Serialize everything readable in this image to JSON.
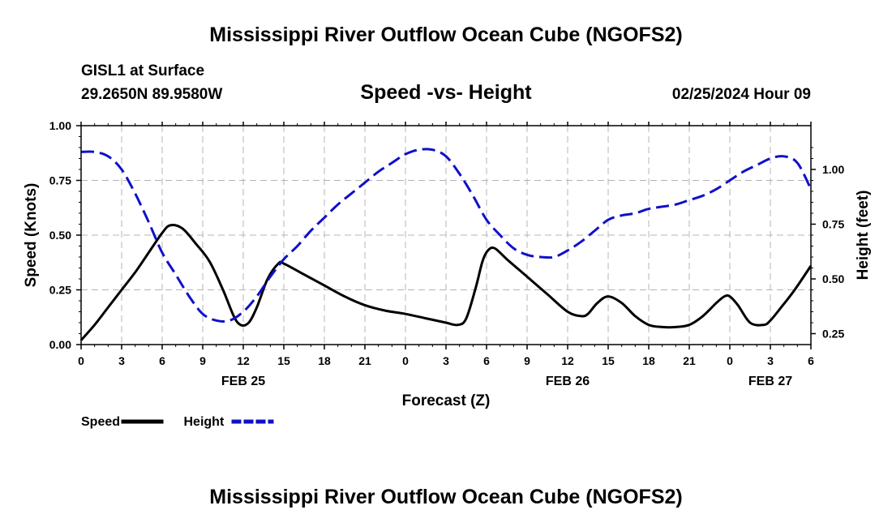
{
  "header": {
    "title": "Mississippi River Outflow Ocean Cube (NGOFS2)",
    "station": "GISL1 at Surface",
    "coords": "29.2650N  89.9580W",
    "chart_title": "Speed -vs- Height",
    "date": "02/25/2024 Hour 09"
  },
  "footer": {
    "title": "Mississippi River Outflow Ocean Cube (NGOFS2)"
  },
  "chart_data": {
    "type": "line",
    "title": "Speed -vs- Height",
    "xlabel": "Forecast (Z)",
    "ylabel": "Speed (Knots)",
    "y2label": "Height (feet)",
    "xlim": [
      0,
      54
    ],
    "ylim": [
      0,
      1.0
    ],
    "y2lim": [
      0.2,
      1.2
    ],
    "grid": true,
    "x_ticks": [
      0,
      3,
      6,
      9,
      12,
      15,
      18,
      21,
      24,
      27,
      30,
      33,
      36,
      39,
      42,
      45,
      48,
      51,
      54
    ],
    "x_tick_labels": [
      "0",
      "3",
      "6",
      "9",
      "12",
      "15",
      "18",
      "21",
      "0",
      "3",
      "6",
      "9",
      "12",
      "15",
      "18",
      "21",
      "0",
      "3",
      "6"
    ],
    "y_ticks": [
      0,
      0.25,
      0.5,
      0.75,
      1.0
    ],
    "y_tick_labels": [
      "0.00",
      "0.25",
      "0.50",
      "0.75",
      "1.00"
    ],
    "y2_ticks": [
      0.25,
      0.5,
      0.75,
      1.0
    ],
    "y2_tick_labels": [
      "0.25",
      "0.50",
      "0.75",
      "1.00"
    ],
    "date_labels": [
      {
        "x": 12,
        "label": "FEB 25"
      },
      {
        "x": 36,
        "label": "FEB 26"
      },
      {
        "x": 51,
        "label": "FEB 27"
      }
    ],
    "series": [
      {
        "name": "Speed",
        "axis": "left",
        "color": "#000000",
        "dash": "solid",
        "x": [
          0,
          1,
          2,
          3,
          4,
          5,
          6,
          6.6,
          7.5,
          8.5,
          9.5,
          10.5,
          11.3,
          11.8,
          12.4,
          13,
          13.8,
          14.6,
          15,
          16.5,
          18,
          19.5,
          21,
          22.5,
          24,
          25.5,
          27,
          27.9,
          28.5,
          29.2,
          29.7,
          30.1,
          30.6,
          31.5,
          33,
          34.5,
          36,
          37,
          37.5,
          38.2,
          39,
          40,
          41,
          42,
          43,
          44,
          45,
          46,
          47,
          47.6,
          48,
          48.6,
          49.5,
          50.5,
          51,
          51.8,
          52.8,
          54
        ],
        "values": [
          0.02,
          0.09,
          0.17,
          0.25,
          0.33,
          0.42,
          0.51,
          0.545,
          0.53,
          0.46,
          0.38,
          0.25,
          0.13,
          0.09,
          0.1,
          0.17,
          0.3,
          0.37,
          0.37,
          0.32,
          0.27,
          0.22,
          0.18,
          0.155,
          0.14,
          0.12,
          0.1,
          0.09,
          0.12,
          0.26,
          0.38,
          0.43,
          0.44,
          0.39,
          0.31,
          0.23,
          0.15,
          0.13,
          0.14,
          0.19,
          0.22,
          0.19,
          0.13,
          0.09,
          0.08,
          0.08,
          0.09,
          0.13,
          0.19,
          0.22,
          0.22,
          0.18,
          0.1,
          0.09,
          0.11,
          0.17,
          0.25,
          0.36
        ]
      },
      {
        "name": "Height",
        "axis": "right",
        "color": "#1010c8",
        "dash": "dashed",
        "x": [
          0,
          1,
          2,
          3,
          4,
          5,
          6,
          7,
          8,
          9,
          10,
          11,
          12,
          13,
          14,
          15,
          16,
          17,
          18,
          19,
          20,
          21,
          22,
          23,
          24,
          25,
          26,
          27,
          28,
          29,
          30,
          31,
          32,
          33,
          34,
          35,
          36,
          37,
          38,
          39,
          40,
          41,
          42,
          43,
          44,
          45,
          46,
          47,
          48,
          49,
          50,
          51,
          52,
          53,
          54
        ],
        "values": [
          1.08,
          1.08,
          1.06,
          1.0,
          0.89,
          0.76,
          0.62,
          0.52,
          0.42,
          0.34,
          0.31,
          0.31,
          0.35,
          0.42,
          0.51,
          0.59,
          0.65,
          0.72,
          0.78,
          0.84,
          0.89,
          0.94,
          0.99,
          1.03,
          1.07,
          1.09,
          1.09,
          1.06,
          0.98,
          0.88,
          0.77,
          0.7,
          0.64,
          0.61,
          0.6,
          0.6,
          0.63,
          0.67,
          0.72,
          0.77,
          0.79,
          0.8,
          0.82,
          0.83,
          0.84,
          0.86,
          0.88,
          0.91,
          0.95,
          0.99,
          1.02,
          1.05,
          1.06,
          1.03,
          0.91
        ]
      }
    ],
    "legend": [
      {
        "label": "Speed",
        "color": "#000000",
        "dash": "solid"
      },
      {
        "label": "Height",
        "color": "#1010c8",
        "dash": "dashed"
      }
    ]
  }
}
